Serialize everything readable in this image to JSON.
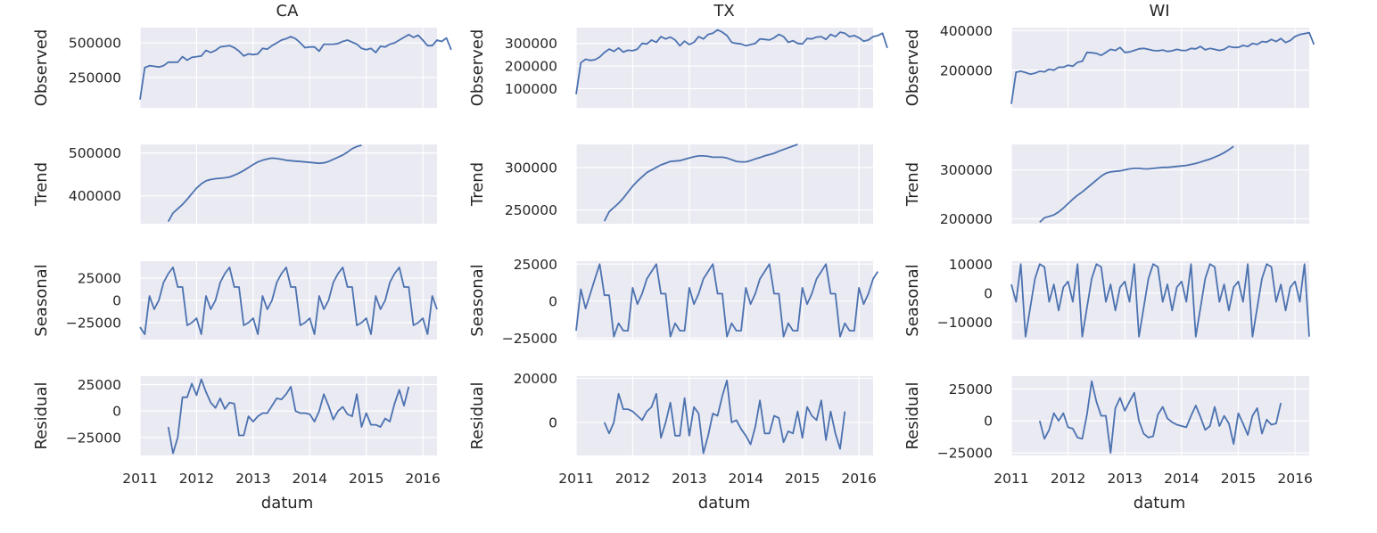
{
  "chart_data": [
    {
      "type": "line",
      "title": "CA",
      "xlabel": "datum",
      "x_ticks": [
        "2011",
        "2012",
        "2013",
        "2014",
        "2015",
        "2016"
      ],
      "x_range": [
        2011.0,
        2016.25
      ],
      "panels": [
        {
          "ylabel": "Observed",
          "ylim": [
            30000,
            610000
          ],
          "y_ticks": [
            250000,
            500000
          ],
          "y_tick_labels": [
            "250000",
            "500000"
          ],
          "start": 2011.0,
          "values": [
            90000,
            320000,
            335000,
            330000,
            325000,
            335000,
            360000,
            360000,
            360000,
            400000,
            375000,
            395000,
            400000,
            405000,
            445000,
            430000,
            445000,
            470000,
            475000,
            480000,
            465000,
            440000,
            405000,
            420000,
            415000,
            420000,
            460000,
            455000,
            480000,
            500000,
            520000,
            530000,
            545000,
            530000,
            500000,
            465000,
            470000,
            470000,
            440000,
            490000,
            490000,
            490000,
            495000,
            510000,
            520000,
            505000,
            490000,
            460000,
            450000,
            460000,
            430000,
            475000,
            470000,
            490000,
            500000,
            520000,
            540000,
            560000,
            540000,
            555000,
            520000,
            480000,
            480000,
            520000,
            510000,
            535000,
            450000
          ]
        },
        {
          "ylabel": "Trend",
          "ylim": [
            335000,
            520000
          ],
          "y_ticks": [
            400000,
            500000
          ],
          "y_tick_labels": [
            "400000",
            "500000"
          ],
          "start": 2011.5,
          "values": [
            340000,
            360000,
            370000,
            380000,
            392000,
            405000,
            418000,
            428000,
            435000,
            438000,
            440000,
            441000,
            442000,
            444000,
            448000,
            453000,
            459000,
            466000,
            473000,
            479000,
            483000,
            486000,
            488000,
            487000,
            485000,
            483000,
            482000,
            481000,
            480000,
            479000,
            478000,
            477000,
            476000,
            477000,
            480000,
            485000,
            490000,
            495000,
            502000,
            510000,
            515000,
            518000
          ]
        },
        {
          "ylabel": "Seasonal",
          "ylim": [
            -44000,
            44000
          ],
          "y_ticks": [
            -25000,
            0,
            25000
          ],
          "y_tick_labels": [
            "−25000",
            "0",
            "25000"
          ],
          "start": 2011.0,
          "values": [
            -30000,
            -38000,
            5000,
            -10000,
            0,
            20000,
            30000,
            37000,
            15000,
            15000,
            -28000,
            -25000,
            -20000,
            -38000,
            5000,
            -10000,
            0,
            20000,
            30000,
            37000,
            15000,
            15000,
            -28000,
            -25000,
            -20000,
            -38000,
            5000,
            -10000,
            0,
            20000,
            30000,
            37000,
            15000,
            15000,
            -28000,
            -25000,
            -20000,
            -38000,
            5000,
            -10000,
            0,
            20000,
            30000,
            37000,
            15000,
            15000,
            -28000,
            -25000,
            -20000,
            -38000,
            5000,
            -10000,
            0,
            20000,
            30000,
            37000,
            15000,
            15000,
            -28000,
            -25000,
            -20000,
            -38000,
            5000,
            -10000
          ]
        },
        {
          "ylabel": "Residual",
          "ylim": [
            -42000,
            33000
          ],
          "y_ticks": [
            -25000,
            0,
            25000
          ],
          "y_tick_labels": [
            "−25000",
            "0",
            "25000"
          ],
          "start": 2011.5,
          "values": [
            -15000,
            -40000,
            -25000,
            13000,
            13000,
            26000,
            15000,
            30000,
            18000,
            8000,
            3000,
            12000,
            2000,
            8000,
            7000,
            -23000,
            -23000,
            -5000,
            -10000,
            -5000,
            -2000,
            -2000,
            5000,
            12000,
            11000,
            16000,
            23000,
            0,
            -2000,
            -2000,
            -3000,
            -10000,
            0,
            16000,
            5000,
            -8000,
            0,
            4000,
            -3000,
            -5000,
            16000,
            -15000,
            -2000,
            -13000,
            -13000,
            -15000,
            -7000,
            -10000,
            7000,
            20000,
            5000,
            23000
          ]
        }
      ]
    },
    {
      "type": "line",
      "title": "TX",
      "xlabel": "datum",
      "x_ticks": [
        "2011",
        "2012",
        "2013",
        "2014",
        "2015",
        "2016"
      ],
      "x_range": [
        2011.0,
        2016.25
      ],
      "panels": [
        {
          "ylabel": "Observed",
          "ylim": [
            15000,
            370000
          ],
          "y_ticks": [
            100000,
            200000,
            300000
          ],
          "y_tick_labels": [
            "100000",
            "200000",
            "300000"
          ],
          "start": 2011.0,
          "values": [
            75000,
            215000,
            230000,
            225000,
            228000,
            240000,
            260000,
            275000,
            265000,
            280000,
            262000,
            270000,
            268000,
            275000,
            300000,
            298000,
            315000,
            305000,
            330000,
            320000,
            328000,
            315000,
            290000,
            310000,
            295000,
            305000,
            330000,
            320000,
            340000,
            345000,
            360000,
            350000,
            335000,
            305000,
            300000,
            298000,
            290000,
            295000,
            300000,
            320000,
            318000,
            315000,
            325000,
            340000,
            330000,
            305000,
            312000,
            300000,
            298000,
            322000,
            320000,
            328000,
            330000,
            318000,
            340000,
            330000,
            350000,
            345000,
            330000,
            335000,
            325000,
            310000,
            315000,
            330000,
            335000,
            345000,
            280000
          ]
        },
        {
          "ylabel": "Trend",
          "ylim": [
            234000,
            327000
          ],
          "y_ticks": [
            250000,
            300000
          ],
          "y_tick_labels": [
            "250000",
            "300000"
          ],
          "start": 2011.5,
          "values": [
            237000,
            248000,
            253000,
            258000,
            264000,
            271000,
            278000,
            284000,
            289000,
            294000,
            297000,
            300000,
            303000,
            305000,
            307000,
            307500,
            308000,
            309500,
            311000,
            312500,
            313500,
            313500,
            313000,
            312000,
            312000,
            312000,
            311000,
            309000,
            307000,
            306500,
            306500,
            308000,
            310000,
            311500,
            313500,
            315000,
            316500,
            319000,
            321000,
            323000,
            325000,
            327000
          ]
        },
        {
          "ylabel": "Seasonal",
          "ylim": [
            -26000,
            27000
          ],
          "y_ticks": [
            -25000,
            0,
            25000
          ],
          "y_tick_labels": [
            "−25000",
            "0",
            "25000"
          ],
          "start": 2011.0,
          "values": [
            -20000,
            8000,
            -5000,
            5000,
            15000,
            25000,
            4000,
            4000,
            -24000,
            -15000,
            -20000,
            -20000,
            9000,
            -2000,
            5000,
            15000,
            20000,
            25000,
            5000,
            5000,
            -24000,
            -15000,
            -20000,
            -20000,
            9000,
            -2000,
            5000,
            15000,
            20000,
            25000,
            5000,
            5000,
            -24000,
            -15000,
            -20000,
            -20000,
            9000,
            -2000,
            5000,
            15000,
            20000,
            25000,
            5000,
            5000,
            -24000,
            -15000,
            -20000,
            -20000,
            9000,
            -2000,
            5000,
            15000,
            20000,
            25000,
            5000,
            5000,
            -24000,
            -15000,
            -20000,
            -20000,
            9000,
            -2000,
            5000,
            15000,
            20000
          ]
        },
        {
          "ylabel": "Residual",
          "ylim": [
            -15000,
            21000
          ],
          "y_ticks": [
            0,
            20000
          ],
          "y_tick_labels": [
            "0",
            "20000"
          ],
          "start": 2011.5,
          "values": [
            0,
            -5000,
            0,
            13000,
            6000,
            6000,
            5000,
            3000,
            1000,
            5000,
            7000,
            13000,
            -7000,
            0,
            9000,
            -6000,
            -6000,
            11000,
            -6000,
            7000,
            4000,
            -14000,
            -6000,
            4000,
            3000,
            12000,
            19000,
            0,
            1000,
            -3000,
            -6000,
            -10000,
            -2000,
            10000,
            -5000,
            -5000,
            3000,
            2000,
            -9000,
            -4000,
            -5000,
            5000,
            -7000,
            7000,
            3000,
            1000,
            10000,
            -8000,
            5000,
            -5000,
            -12000,
            5000
          ]
        }
      ]
    },
    {
      "type": "line",
      "title": "WI",
      "xlabel": "datum",
      "x_ticks": [
        "2011",
        "2012",
        "2013",
        "2014",
        "2015",
        "2016"
      ],
      "x_range": [
        2011.0,
        2016.25
      ],
      "panels": [
        {
          "ylabel": "Observed",
          "ylim": [
            10000,
            415000
          ],
          "y_ticks": [
            200000,
            400000
          ],
          "y_tick_labels": [
            "200000",
            "400000"
          ],
          "start": 2011.0,
          "values": [
            30000,
            190000,
            195000,
            188000,
            180000,
            185000,
            195000,
            192000,
            205000,
            200000,
            215000,
            215000,
            225000,
            220000,
            240000,
            245000,
            290000,
            288000,
            285000,
            275000,
            290000,
            305000,
            300000,
            315000,
            290000,
            292000,
            300000,
            308000,
            310000,
            305000,
            300000,
            298000,
            302000,
            295000,
            298000,
            305000,
            300000,
            300000,
            310000,
            308000,
            320000,
            303000,
            310000,
            305000,
            300000,
            305000,
            320000,
            315000,
            315000,
            325000,
            320000,
            335000,
            330000,
            345000,
            342000,
            355000,
            345000,
            360000,
            340000,
            350000,
            370000,
            380000,
            385000,
            390000,
            330000
          ]
        },
        {
          "ylabel": "Trend",
          "ylim": [
            190000,
            352000
          ],
          "y_ticks": [
            200000,
            300000
          ],
          "y_tick_labels": [
            "200000",
            "300000"
          ],
          "start": 2011.5,
          "values": [
            193000,
            202000,
            205000,
            208000,
            214000,
            222000,
            231000,
            240000,
            248000,
            255000,
            263000,
            271000,
            279000,
            287000,
            293000,
            296000,
            297000,
            298000,
            300000,
            302000,
            303000,
            303000,
            302000,
            302000,
            303000,
            304000,
            305000,
            305000,
            306000,
            307000,
            308000,
            309000,
            311000,
            313000,
            316000,
            319000,
            322000,
            326000,
            330000,
            335000,
            341000,
            348000
          ]
        },
        {
          "ylabel": "Seasonal",
          "ylim": [
            -16000,
            11000
          ],
          "y_ticks": [
            -10000,
            0,
            10000
          ],
          "y_tick_labels": [
            "−10000",
            "0",
            "10000"
          ],
          "start": 2011.0,
          "values": [
            3000,
            -3000,
            10000,
            -15000,
            -5000,
            5000,
            10000,
            9000,
            -3000,
            3000,
            -6000,
            2000,
            4000,
            -3000,
            10000,
            -15000,
            -5000,
            5000,
            10000,
            9000,
            -3000,
            3000,
            -6000,
            2000,
            4000,
            -3000,
            10000,
            -15000,
            -5000,
            5000,
            10000,
            9000,
            -3000,
            3000,
            -6000,
            2000,
            4000,
            -3000,
            10000,
            -15000,
            -5000,
            5000,
            10000,
            9000,
            -3000,
            3000,
            -6000,
            2000,
            4000,
            -3000,
            10000,
            -15000,
            -5000,
            5000,
            10000,
            9000,
            -3000,
            3000,
            -6000,
            2000,
            4000,
            -3000,
            10000,
            -15000
          ]
        },
        {
          "ylabel": "Residual",
          "ylim": [
            -27000,
            35000
          ],
          "y_ticks": [
            -25000,
            0,
            25000
          ],
          "y_tick_labels": [
            "−25000",
            "0",
            "25000"
          ],
          "start": 2011.5,
          "values": [
            0,
            -14000,
            -7000,
            6000,
            0,
            6000,
            -5000,
            -6000,
            -13000,
            -14000,
            5000,
            31000,
            15000,
            4000,
            4000,
            -25000,
            10000,
            18000,
            8000,
            15000,
            22000,
            0,
            -10000,
            -13000,
            -12000,
            5000,
            11000,
            2000,
            -1000,
            -3000,
            -4000,
            -5000,
            4000,
            12000,
            3000,
            -7000,
            -4000,
            11000,
            -4000,
            4000,
            -2000,
            -18000,
            6000,
            -2000,
            -11000,
            4000,
            10000,
            -10000,
            1000,
            -3000,
            -2000,
            14000
          ]
        }
      ]
    }
  ]
}
